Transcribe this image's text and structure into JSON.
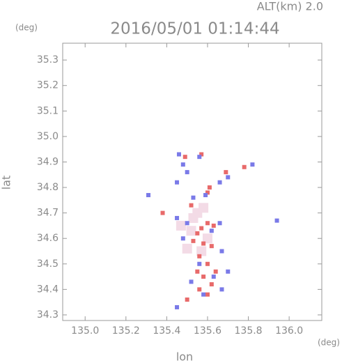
{
  "chart_data": {
    "type": "scatter",
    "title": "2016/05/01 01:14:44",
    "annotation": "ALT(km) 2.0",
    "x_unit": "(deg)",
    "y_unit": "(deg)",
    "xlabel": "lon",
    "ylabel": "lat",
    "xlim": [
      134.89,
      136.16
    ],
    "ylim": [
      34.278,
      35.366
    ],
    "xticks": [
      {
        "value": 135,
        "label": "135.0"
      },
      135.2,
      135.4,
      135.6,
      135.8,
      {
        "value": 136,
        "label": "136.0"
      }
    ],
    "yticks": [
      34.3,
      34.4,
      34.5,
      34.6,
      34.7,
      34.8,
      34.9,
      {
        "value": 35,
        "label": "35.0"
      },
      35.1,
      35.2,
      35.3
    ],
    "series": [
      {
        "color": "#f3dbe6",
        "x": [
          135.55,
          135.52,
          135.5,
          135.57,
          135.6,
          135.53,
          135.47,
          135.58
        ],
        "values": [
          34.7,
          34.63,
          34.56,
          34.55,
          34.6,
          34.68,
          34.65,
          34.72
        ]
      },
      {
        "color": "#e86a6a",
        "x": [
          135.57,
          135.49,
          135.78,
          135.69,
          135.61,
          135.6,
          135.52,
          135.6,
          135.57,
          135.63,
          135.55,
          135.53,
          135.58,
          135.62,
          135.56,
          135.6,
          135.64,
          135.58,
          135.62,
          135.56,
          135.6,
          135.5,
          135.38,
          135.55
        ],
        "values": [
          34.93,
          34.92,
          34.88,
          34.86,
          34.8,
          34.78,
          34.73,
          34.66,
          34.64,
          34.65,
          34.62,
          34.59,
          34.58,
          34.57,
          34.53,
          34.5,
          34.47,
          34.45,
          34.42,
          34.4,
          34.38,
          34.36,
          34.7,
          34.47
        ]
      },
      {
        "color": "#7a7ae8",
        "x": [
          135.46,
          135.48,
          135.56,
          135.7,
          135.66,
          135.82,
          135.5,
          135.45,
          135.59,
          135.53,
          135.31,
          135.45,
          135.5,
          135.66,
          135.62,
          135.48,
          135.67,
          135.56,
          135.63,
          135.7,
          135.52,
          135.67,
          135.58,
          135.45,
          135.94
        ],
        "values": [
          34.93,
          34.89,
          34.92,
          34.84,
          34.82,
          34.89,
          34.86,
          34.82,
          34.77,
          34.76,
          34.77,
          34.68,
          34.66,
          34.66,
          34.63,
          34.6,
          34.55,
          34.5,
          34.45,
          34.47,
          34.43,
          34.4,
          34.38,
          34.33,
          34.67
        ]
      }
    ]
  }
}
